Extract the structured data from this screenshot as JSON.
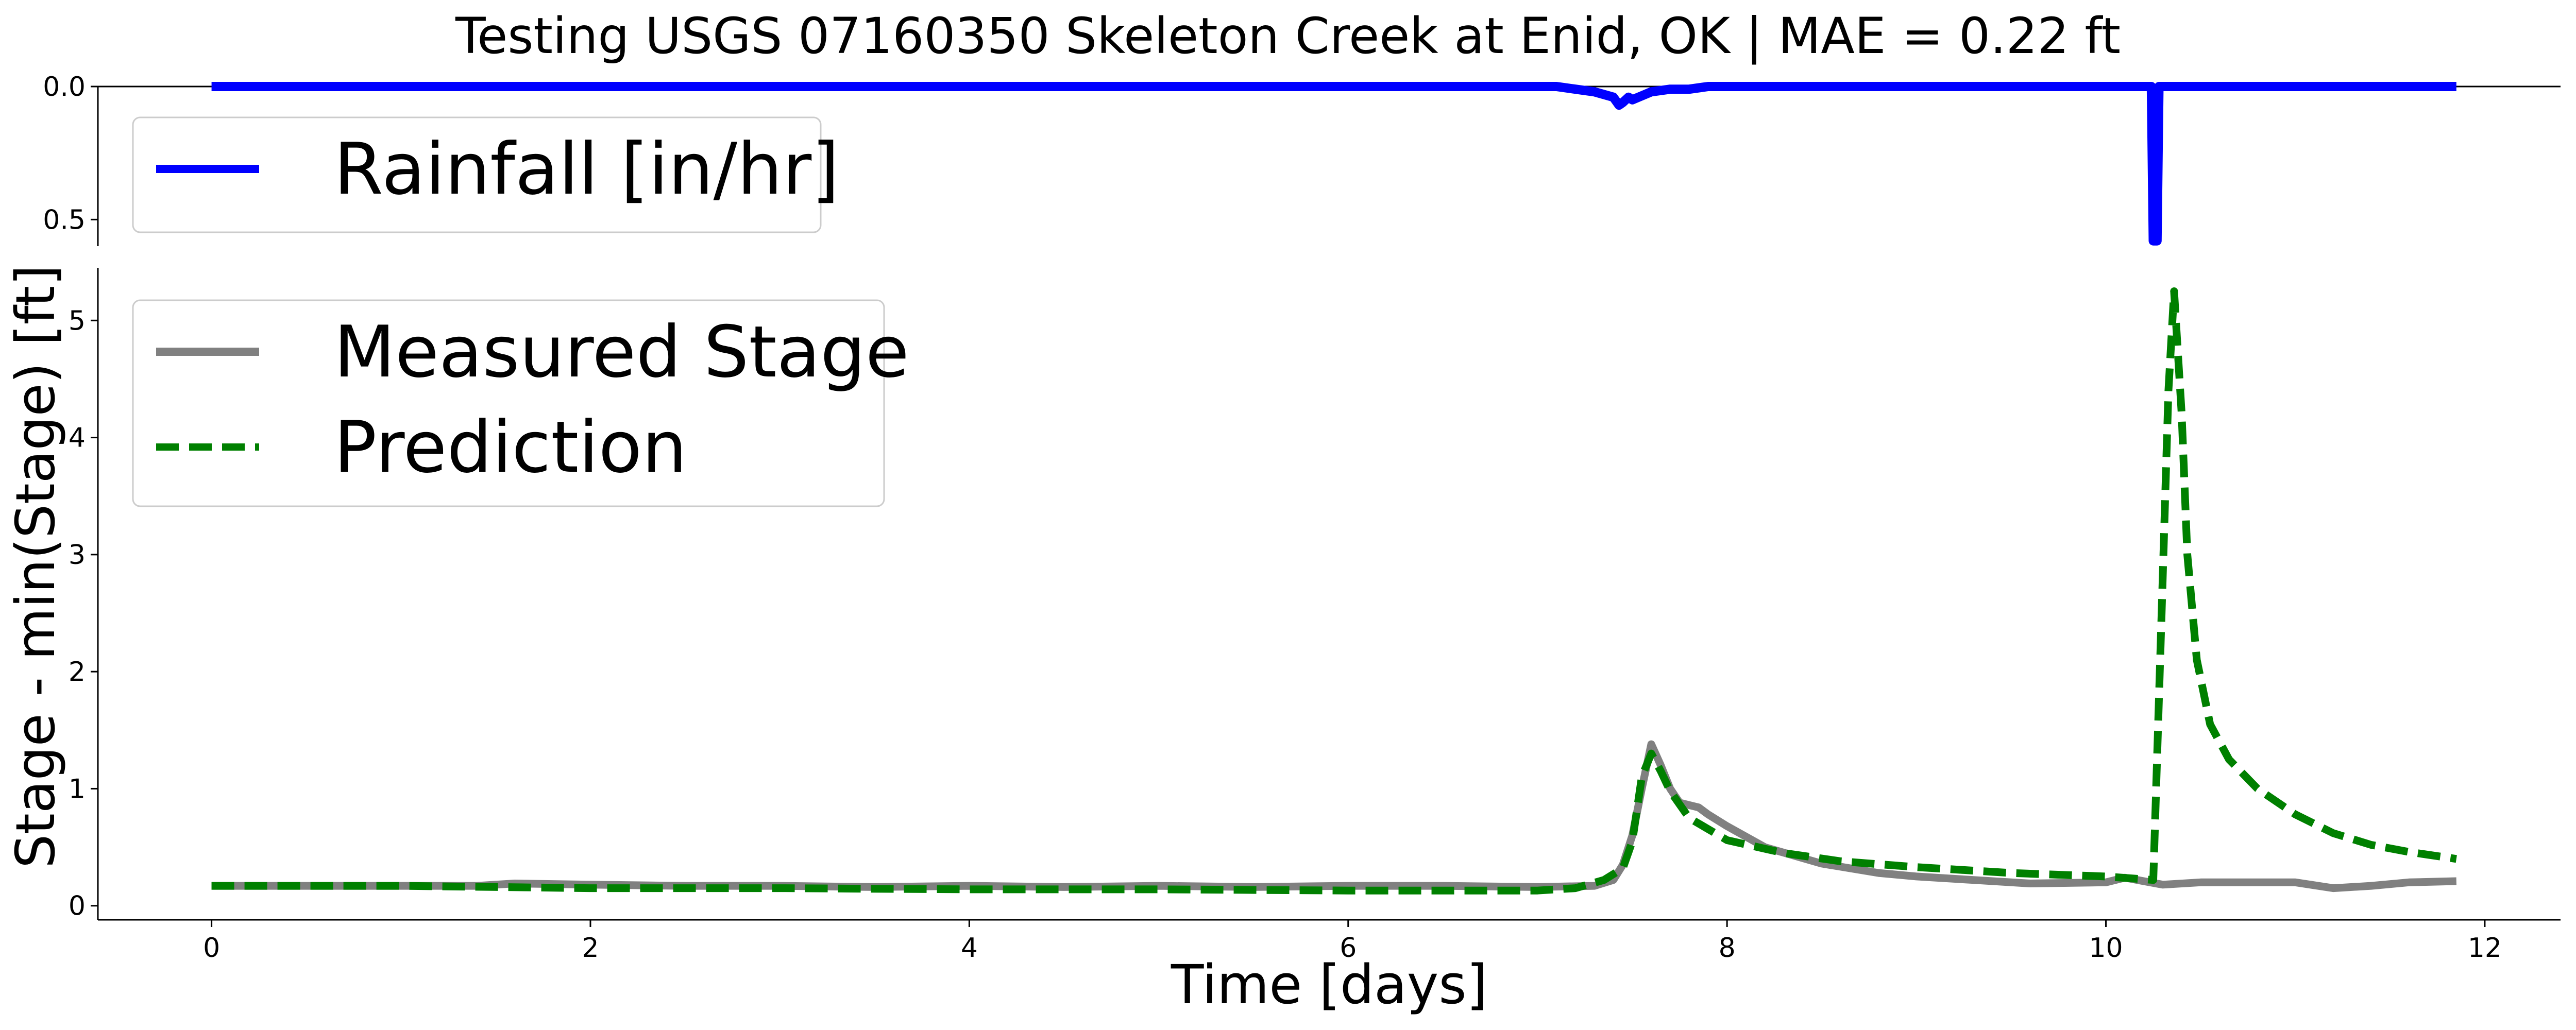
{
  "chart_data": [
    {
      "type": "line",
      "panel": "rainfall",
      "title": "Testing USGS 07160350 Skeleton Creek at Enid, OK | MAE = 0.22 ft",
      "y_inverted": true,
      "ylim": [
        0.6,
        0.0
      ],
      "yticks": [
        0.0,
        0.5
      ],
      "ytick_labels": [
        "0.0",
        "0.5"
      ],
      "legend_position": "upper-left",
      "series": [
        {
          "name": "Rainfall [in/hr]",
          "color": "#0000ff",
          "style": "solid",
          "x": [
            0,
            7.1,
            7.2,
            7.3,
            7.4,
            7.43,
            7.45,
            7.48,
            7.5,
            7.6,
            7.7,
            7.8,
            7.9,
            8.0,
            8.02,
            10.24,
            10.25,
            10.27,
            10.28,
            11.85
          ],
          "y": [
            0,
            0,
            0.01,
            0.02,
            0.04,
            0.07,
            0.06,
            0.04,
            0.05,
            0.02,
            0.01,
            0.01,
            0.0,
            0.0,
            0.0,
            0.0,
            0.58,
            0.58,
            0.0,
            0.0
          ]
        }
      ]
    },
    {
      "type": "line",
      "panel": "stage",
      "xlabel": "Time [days]",
      "ylabel": "Stage - min(Stage) [ft]",
      "xlim": [
        -0.6,
        12.4
      ],
      "ylim": [
        -0.12,
        5.45
      ],
      "xticks": [
        0,
        2,
        4,
        6,
        8,
        10,
        12
      ],
      "xtick_labels": [
        "0",
        "2",
        "4",
        "6",
        "8",
        "10",
        "12"
      ],
      "yticks": [
        0,
        1,
        2,
        3,
        4,
        5
      ],
      "ytick_labels": [
        "0",
        "1",
        "2",
        "3",
        "4",
        "5"
      ],
      "legend_position": "upper-left",
      "series": [
        {
          "name": "Measured Stage",
          "color": "#808080",
          "style": "solid",
          "x": [
            0,
            0.5,
            1.0,
            1.4,
            1.6,
            2.0,
            2.5,
            3.0,
            3.5,
            4.0,
            4.5,
            5.0,
            5.5,
            6.0,
            6.5,
            7.0,
            7.3,
            7.4,
            7.45,
            7.5,
            7.55,
            7.6,
            7.65,
            7.7,
            7.75,
            7.8,
            7.85,
            7.9,
            8.0,
            8.2,
            8.5,
            8.8,
            9.0,
            9.3,
            9.6,
            10.0,
            10.1,
            10.3,
            10.5,
            10.8,
            11.0,
            11.2,
            11.4,
            11.6,
            11.85
          ],
          "y": [
            0.17,
            0.17,
            0.17,
            0.17,
            0.19,
            0.18,
            0.17,
            0.17,
            0.16,
            0.17,
            0.16,
            0.17,
            0.16,
            0.17,
            0.17,
            0.16,
            0.17,
            0.22,
            0.35,
            0.6,
            1.0,
            1.38,
            1.2,
            1.0,
            0.88,
            0.86,
            0.84,
            0.78,
            0.68,
            0.5,
            0.36,
            0.28,
            0.25,
            0.22,
            0.19,
            0.2,
            0.24,
            0.18,
            0.2,
            0.2,
            0.2,
            0.15,
            0.17,
            0.2,
            0.21
          ]
        },
        {
          "name": "Prediction",
          "color": "#008000",
          "style": "dashed",
          "x": [
            0,
            1.0,
            2.0,
            3.0,
            4.0,
            5.0,
            6.0,
            7.0,
            7.2,
            7.35,
            7.45,
            7.5,
            7.55,
            7.6,
            7.65,
            7.7,
            7.8,
            8.0,
            8.3,
            8.6,
            9.0,
            9.5,
            10.0,
            10.25,
            10.3,
            10.33,
            10.36,
            10.4,
            10.43,
            10.48,
            10.55,
            10.65,
            10.8,
            11.0,
            11.2,
            11.4,
            11.6,
            11.85
          ],
          "y": [
            0.17,
            0.17,
            0.15,
            0.15,
            0.14,
            0.14,
            0.13,
            0.13,
            0.15,
            0.22,
            0.32,
            0.55,
            1.1,
            1.3,
            1.15,
            0.98,
            0.75,
            0.56,
            0.45,
            0.38,
            0.33,
            0.28,
            0.25,
            0.22,
            2.8,
            4.4,
            5.25,
            4.2,
            3.0,
            2.1,
            1.55,
            1.25,
            1.0,
            0.78,
            0.62,
            0.52,
            0.46,
            0.4
          ]
        }
      ]
    }
  ]
}
